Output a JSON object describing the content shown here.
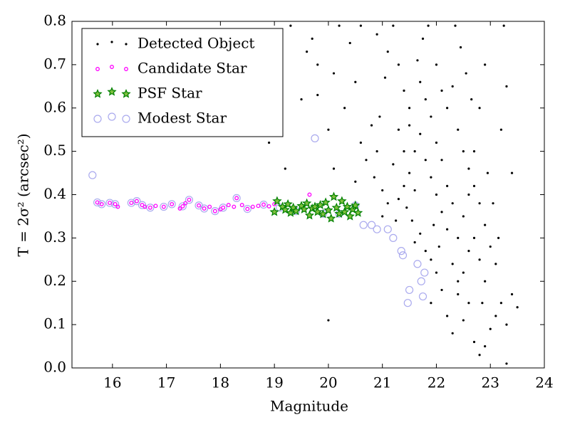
{
  "chart_data": {
    "type": "scatter",
    "xlabel": "Magnitude",
    "ylabel": "T = 2σ² (arcsec²)",
    "xlim": [
      15.25,
      24
    ],
    "ylim": [
      0,
      0.8
    ],
    "xticks": [
      16,
      17,
      18,
      19,
      20,
      21,
      22,
      23,
      24
    ],
    "yticks": [
      {
        "value": 0,
        "label": "0.0"
      },
      0.1,
      0.2,
      0.3,
      0.4,
      0.5,
      0.6,
      0.7,
      0.8
    ],
    "legend": "upper left",
    "series": [
      {
        "name": "Detected Object",
        "color": "#000000",
        "marker": "dot",
        "x": [
          20.0,
          19.2,
          18.9,
          19.6,
          19.3,
          19.7,
          20.2,
          20.4,
          20.6,
          19.8,
          20.1,
          20.5,
          19.5,
          19.1,
          19.8,
          20.3,
          20.0,
          20.6,
          20.8,
          20.1,
          20.5,
          20.7,
          20.9,
          20.85,
          21.0,
          21.1,
          21.0,
          20.95,
          21.05,
          21.1,
          21.2,
          20.9,
          21.3,
          21.4,
          21.5,
          21.3,
          21.4,
          21.2,
          21.5,
          21.6,
          21.45,
          21.55,
          21.7,
          21.6,
          21.8,
          21.9,
          22.0,
          22.1,
          21.9,
          22.2,
          22.3,
          22.5,
          22.6,
          22.4,
          22.7,
          22.8,
          22.9,
          23.0,
          23.1,
          23.2,
          23.3,
          23.4,
          23.5,
          23.3,
          23.25,
          23.4,
          23.3,
          23.2,
          22.9,
          22.8,
          22.7,
          22.6,
          22.5,
          22.4,
          22.3,
          22.2,
          22.1,
          22.0,
          21.9,
          21.8,
          21.7,
          21.65,
          21.75,
          21.85,
          22.0,
          22.1,
          22.2,
          22.3,
          22.4,
          22.5,
          22.6,
          22.7,
          22.8,
          22.9,
          23.0,
          23.1,
          22.9,
          22.8,
          22.7,
          22.6,
          22.5,
          22.4,
          22.3,
          22.2,
          22.1,
          22.0,
          21.9,
          21.8,
          21.7,
          21.6,
          21.5,
          21.4,
          21.3,
          21.25,
          22.95,
          23.05,
          22.65,
          22.55,
          22.45,
          22.35,
          21.95,
          22.05,
          23.15,
          22.85
        ],
        "values": [
          0.11,
          0.46,
          0.52,
          0.73,
          0.79,
          0.76,
          0.79,
          0.75,
          0.79,
          0.7,
          0.68,
          0.66,
          0.62,
          0.57,
          0.63,
          0.6,
          0.55,
          0.52,
          0.56,
          0.46,
          0.43,
          0.48,
          0.5,
          0.44,
          0.41,
          0.38,
          0.35,
          0.58,
          0.67,
          0.73,
          0.79,
          0.77,
          0.7,
          0.64,
          0.6,
          0.55,
          0.5,
          0.47,
          0.45,
          0.41,
          0.37,
          0.34,
          0.31,
          0.29,
          0.27,
          0.25,
          0.22,
          0.18,
          0.15,
          0.12,
          0.08,
          0.11,
          0.15,
          0.2,
          0.06,
          0.03,
          0.05,
          0.09,
          0.12,
          0.15,
          0.1,
          0.17,
          0.14,
          0.01,
          0.79,
          0.45,
          0.65,
          0.55,
          0.7,
          0.6,
          0.5,
          0.4,
          0.35,
          0.3,
          0.38,
          0.42,
          0.48,
          0.52,
          0.58,
          0.62,
          0.66,
          0.71,
          0.76,
          0.79,
          0.7,
          0.64,
          0.6,
          0.65,
          0.55,
          0.5,
          0.46,
          0.42,
          0.38,
          0.33,
          0.28,
          0.24,
          0.2,
          0.25,
          0.3,
          0.27,
          0.22,
          0.17,
          0.24,
          0.32,
          0.36,
          0.4,
          0.44,
          0.48,
          0.54,
          0.5,
          0.56,
          0.42,
          0.39,
          0.34,
          0.45,
          0.38,
          0.62,
          0.68,
          0.74,
          0.79,
          0.33,
          0.28,
          0.3,
          0.15
        ]
      },
      {
        "name": "Candidate Star",
        "color": "#ff00ff",
        "marker": "circle",
        "x": [
          15.72,
          15.8,
          15.95,
          16.05,
          16.1,
          16.35,
          16.45,
          16.55,
          16.6,
          16.7,
          16.8,
          16.95,
          17.1,
          17.25,
          17.3,
          17.35,
          17.42,
          17.6,
          17.7,
          17.8,
          17.9,
          18.0,
          18.05,
          18.15,
          18.25,
          18.3,
          18.4,
          18.5,
          18.6,
          18.7,
          18.8,
          18.9,
          19.0,
          19.65
        ],
        "values": [
          0.382,
          0.378,
          0.381,
          0.378,
          0.372,
          0.381,
          0.385,
          0.376,
          0.372,
          0.37,
          0.374,
          0.372,
          0.378,
          0.368,
          0.373,
          0.38,
          0.388,
          0.375,
          0.368,
          0.372,
          0.362,
          0.366,
          0.37,
          0.376,
          0.372,
          0.392,
          0.376,
          0.367,
          0.372,
          0.374,
          0.377,
          0.373,
          0.378,
          0.4
        ]
      },
      {
        "name": "PSF Star",
        "color": "#008000",
        "marker": "star",
        "x": [
          19.0,
          19.05,
          19.15,
          19.2,
          19.25,
          19.3,
          19.35,
          19.4,
          19.5,
          19.55,
          19.6,
          19.65,
          19.7,
          19.75,
          19.8,
          19.85,
          19.9,
          19.95,
          20.0,
          20.05,
          20.1,
          20.15,
          20.2,
          20.25,
          20.3,
          20.35,
          20.4,
          20.45,
          20.5,
          20.55
        ],
        "values": [
          0.36,
          0.385,
          0.372,
          0.365,
          0.378,
          0.358,
          0.37,
          0.362,
          0.374,
          0.366,
          0.38,
          0.352,
          0.368,
          0.372,
          0.36,
          0.376,
          0.355,
          0.382,
          0.364,
          0.345,
          0.395,
          0.37,
          0.356,
          0.385,
          0.36,
          0.372,
          0.35,
          0.366,
          0.375,
          0.358
        ]
      },
      {
        "name": "Modest Star",
        "color": "#aaaaee",
        "marker": "ring",
        "x": [
          15.63,
          15.72,
          15.8,
          15.95,
          16.05,
          16.35,
          16.45,
          16.55,
          16.7,
          16.95,
          17.1,
          17.3,
          17.42,
          17.6,
          17.7,
          17.9,
          18.05,
          18.3,
          18.5,
          18.8,
          19.1,
          19.4,
          19.75,
          19.9,
          20.2,
          20.5,
          20.65,
          20.8,
          20.9,
          21.1,
          21.2,
          21.35,
          21.38,
          21.5,
          21.47,
          21.65,
          21.72,
          21.78,
          21.75
        ],
        "values": [
          0.445,
          0.382,
          0.378,
          0.381,
          0.378,
          0.381,
          0.385,
          0.376,
          0.37,
          0.372,
          0.378,
          0.373,
          0.388,
          0.375,
          0.368,
          0.362,
          0.37,
          0.392,
          0.367,
          0.377,
          0.37,
          0.362,
          0.53,
          0.356,
          0.356,
          0.375,
          0.33,
          0.33,
          0.32,
          0.32,
          0.3,
          0.27,
          0.26,
          0.18,
          0.15,
          0.24,
          0.2,
          0.22,
          0.165
        ]
      }
    ]
  }
}
